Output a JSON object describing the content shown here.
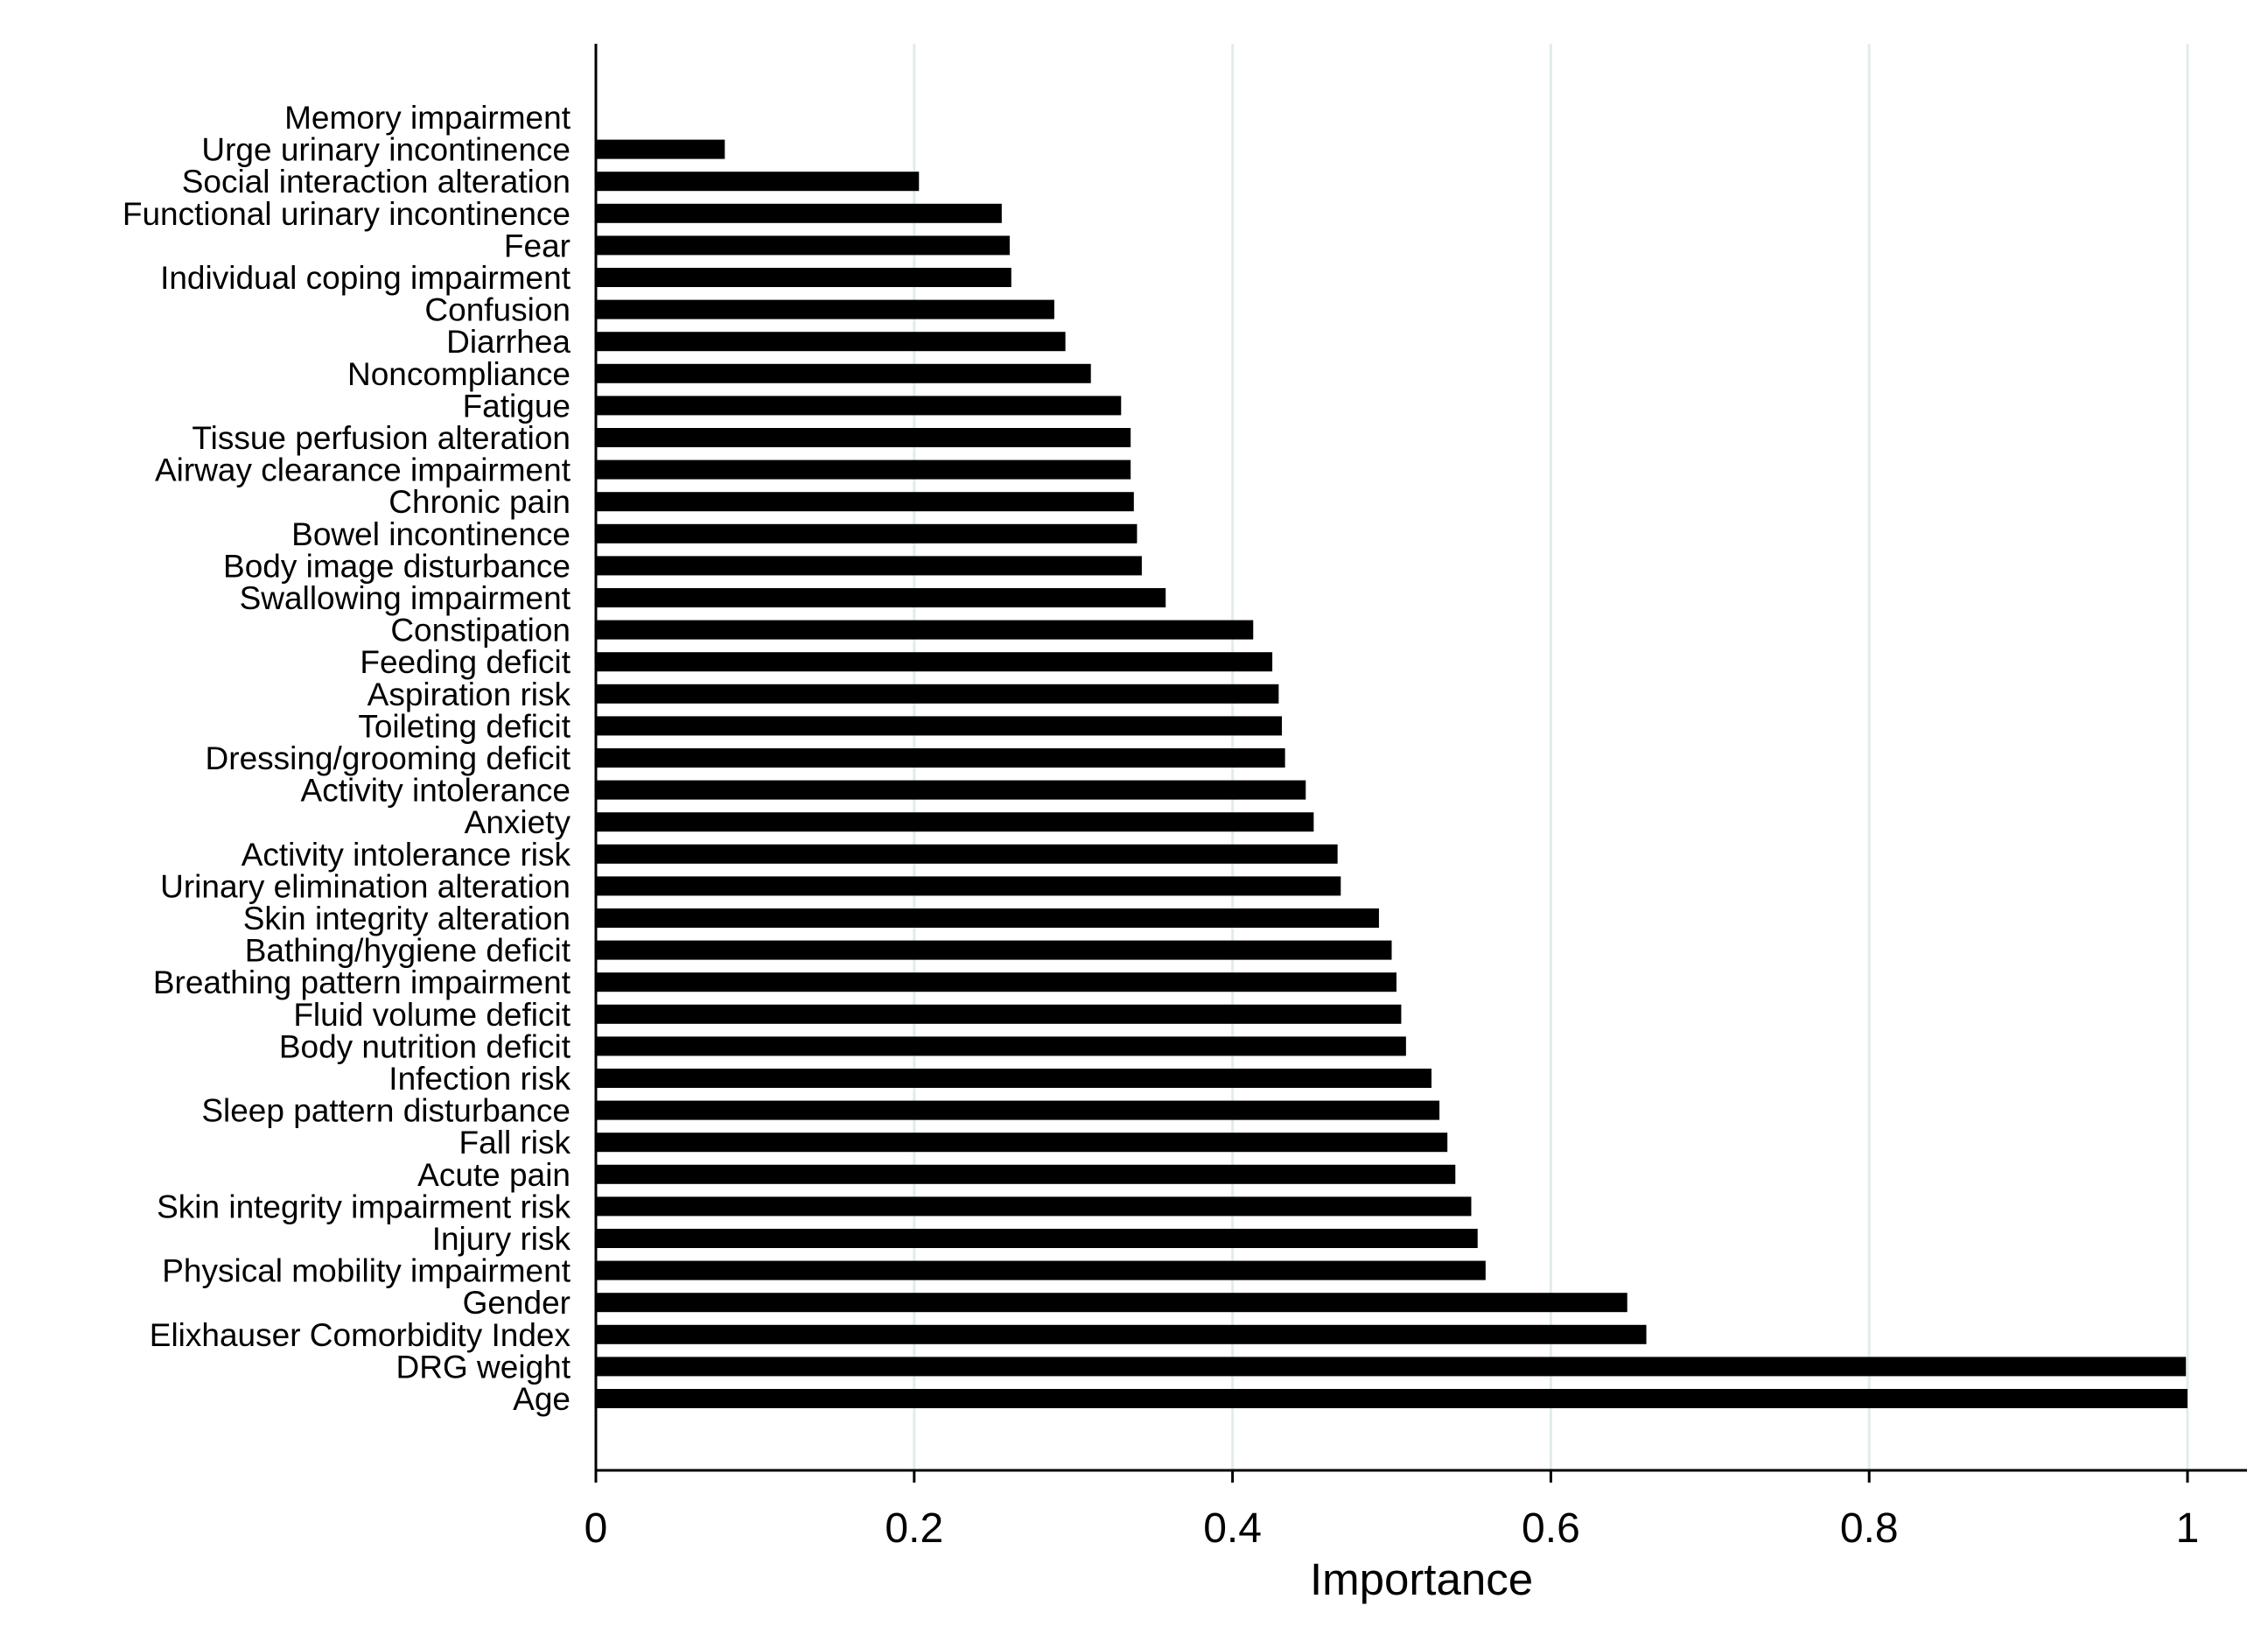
{
  "chart_data": {
    "type": "bar",
    "orientation": "horizontal",
    "categories": [
      "Memory impairment",
      "Urge urinary incontinence",
      "Social interaction alteration",
      "Functional urinary incontinence",
      "Fear",
      "Individual coping impairment",
      "Confusion",
      "Diarrhea",
      "Noncompliance",
      "Fatigue",
      "Tissue perfusion alteration",
      "Airway clearance impairment",
      "Chronic pain",
      "Bowel incontinence",
      "Body image disturbance",
      "Swallowing impairment",
      "Constipation",
      "Feeding deficit",
      "Aspiration risk",
      "Toileting deficit",
      "Dressing/grooming deficit",
      "Activity intolerance",
      "Anxiety",
      "Activity intolerance risk",
      "Urinary elimination alteration",
      "Skin integrity alteration",
      "Bathing/hygiene deficit",
      "Breathing pattern impairment",
      "Fluid volume deficit",
      "Body nutrition deficit",
      "Infection risk",
      "Sleep pattern disturbance",
      "Fall risk",
      "Acute pain",
      "Skin integrity impairment risk",
      "Injury risk",
      "Physical mobility impairment",
      "Gender",
      "Elixhauser Comorbidity Index",
      "DRG weight",
      "Age"
    ],
    "values": [
      0.0,
      0.081,
      0.203,
      0.255,
      0.26,
      0.261,
      0.288,
      0.295,
      0.311,
      0.33,
      0.336,
      0.336,
      0.338,
      0.34,
      0.343,
      0.358,
      0.413,
      0.425,
      0.429,
      0.431,
      0.433,
      0.446,
      0.451,
      0.466,
      0.468,
      0.492,
      0.5,
      0.503,
      0.506,
      0.509,
      0.525,
      0.53,
      0.535,
      0.54,
      0.55,
      0.554,
      0.559,
      0.648,
      0.66,
      0.999,
      1.0
    ],
    "xlabel": "Importance",
    "ylabel": "",
    "title": "",
    "xlim": [
      0,
      1.04
    ],
    "xticks": [
      0,
      0.2,
      0.4,
      0.6,
      0.8,
      1
    ],
    "xtick_labels": [
      "0",
      "0.2",
      "0.4",
      "0.6",
      "0.8",
      "1"
    ],
    "grid": "vertical",
    "legend": "none",
    "colors": {
      "bar": "#000000",
      "grid": "#e3ece9",
      "axis": "#000000",
      "background": "#ffffff"
    }
  }
}
